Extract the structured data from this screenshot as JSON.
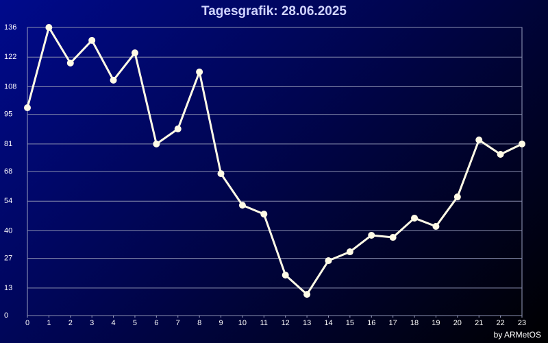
{
  "chart_data": {
    "type": "line",
    "title": "Tagesgrafik: 28.06.2025",
    "credit": "by ARMetOS",
    "x": [
      0,
      1,
      2,
      3,
      4,
      5,
      6,
      7,
      8,
      9,
      10,
      11,
      12,
      13,
      14,
      15,
      16,
      17,
      18,
      19,
      20,
      21,
      22,
      23
    ],
    "series": [
      {
        "color": "#fffbe6",
        "values": [
          98.1,
          136,
          119.2,
          129.9,
          111.1,
          124,
          81,
          88.1,
          115,
          67,
          52.1,
          47.9,
          19.1,
          10,
          25.9,
          30.1,
          37.9,
          36.9,
          46,
          42.1,
          56,
          82.9,
          76.1,
          81
        ]
      }
    ],
    "xlim": [
      0,
      23
    ],
    "ylim": [
      0,
      136
    ],
    "yticks": [
      0,
      13,
      27,
      40,
      54,
      68,
      81,
      95,
      108,
      122,
      136
    ],
    "grid": true
  }
}
